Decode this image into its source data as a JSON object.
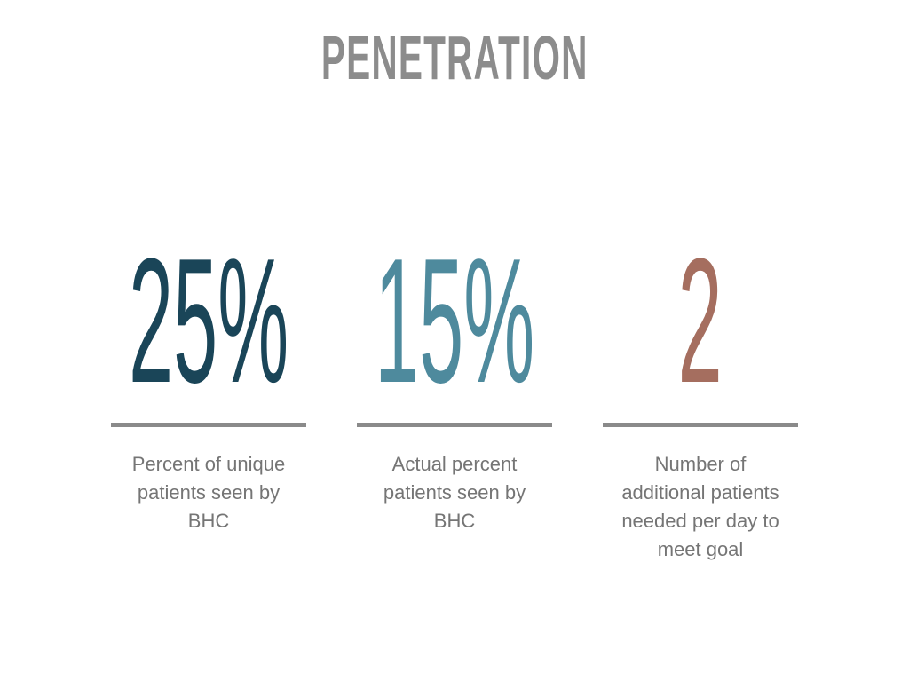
{
  "slide": {
    "title": "PENETRATION",
    "colors": {
      "background": "#ffffff",
      "title": "#8c8c8c",
      "divider": "#8a8a8a",
      "caption": "#757575"
    },
    "stats": [
      {
        "value": "25%",
        "color": "#1a4558",
        "lines": [
          "Percent of unique",
          "patients seen by",
          "BHC"
        ]
      },
      {
        "value": "15%",
        "color": "#4e8a9d",
        "lines": [
          "Actual percent",
          "patients seen by",
          "BHC"
        ]
      },
      {
        "value": "2",
        "color": "#a56e5f",
        "lines": [
          "Number of",
          "additional patients",
          "needed per day to",
          "meet goal"
        ]
      }
    ]
  }
}
